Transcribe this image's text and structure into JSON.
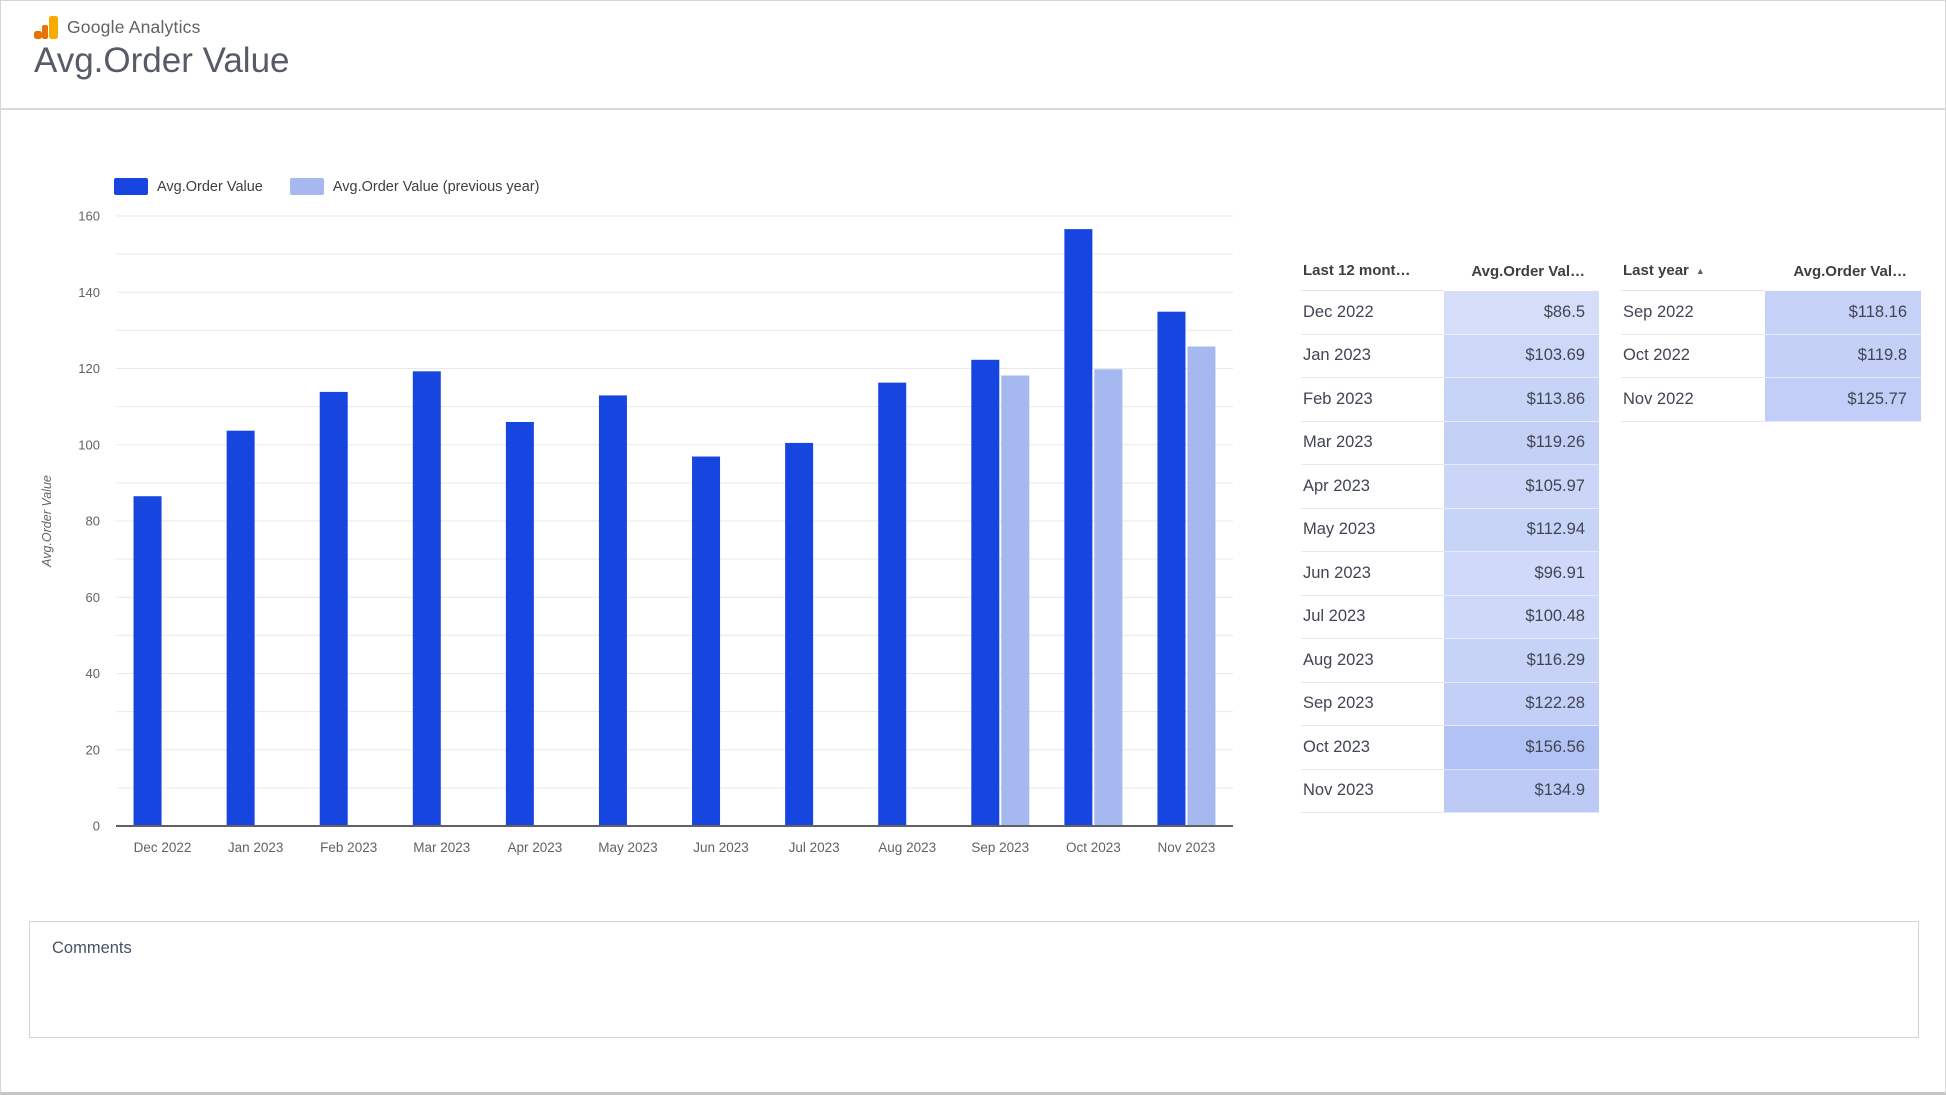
{
  "page": {
    "brand": "Google Analytics",
    "title": "Avg.Order Value"
  },
  "legend": {
    "items": [
      {
        "label": "Avg.Order Value",
        "color": "#1745e0"
      },
      {
        "label": "Avg.Order Value (previous year)",
        "color": "#a5b8ef"
      }
    ]
  },
  "chart_data": {
    "type": "bar",
    "title": "Avg.Order Value",
    "categories": [
      "Dec 2022",
      "Jan 2023",
      "Feb 2023",
      "Mar 2023",
      "Apr 2023",
      "May 2023",
      "Jun 2023",
      "Jul 2023",
      "Aug 2023",
      "Sep 2023",
      "Oct 2023",
      "Nov 2023"
    ],
    "series": [
      {
        "name": "Avg.Order Value",
        "color": "#1745e0",
        "values": [
          86.5,
          103.69,
          113.86,
          119.26,
          105.97,
          112.94,
          96.91,
          100.48,
          116.29,
          122.28,
          156.56,
          134.9
        ]
      },
      {
        "name": "Avg.Order Value (previous year)",
        "color": "#a5b8ef",
        "values": [
          null,
          null,
          null,
          null,
          null,
          null,
          null,
          null,
          null,
          118.16,
          119.8,
          125.77
        ]
      }
    ],
    "xlabel": "",
    "ylabel": "Avg.Order Value",
    "ylim": [
      0,
      160
    ],
    "ytick_step": 20,
    "grid_step": 10,
    "grid": true,
    "legend_position": "top-left"
  },
  "tables": [
    {
      "name": "last-12-months",
      "columns": [
        {
          "label": "Last 12 mont…",
          "sort": null
        },
        {
          "label": "Avg.Order Val…",
          "sort": null
        }
      ],
      "rows": [
        {
          "label": "Dec 2022",
          "value": 86.5,
          "display": "$86.5"
        },
        {
          "label": "Jan 2023",
          "value": 103.69,
          "display": "$103.69"
        },
        {
          "label": "Feb 2023",
          "value": 113.86,
          "display": "$113.86"
        },
        {
          "label": "Mar 2023",
          "value": 119.26,
          "display": "$119.26"
        },
        {
          "label": "Apr 2023",
          "value": 105.97,
          "display": "$105.97"
        },
        {
          "label": "May 2023",
          "value": 112.94,
          "display": "$112.94"
        },
        {
          "label": "Jun 2023",
          "value": 96.91,
          "display": "$96.91"
        },
        {
          "label": "Jul 2023",
          "value": 100.48,
          "display": "$100.48"
        },
        {
          "label": "Aug 2023",
          "value": 116.29,
          "display": "$116.29"
        },
        {
          "label": "Sep 2023",
          "value": 122.28,
          "display": "$122.28"
        },
        {
          "label": "Oct 2023",
          "value": 156.56,
          "display": "$156.56"
        },
        {
          "label": "Nov 2023",
          "value": 134.9,
          "display": "$134.9"
        }
      ]
    },
    {
      "name": "last-year",
      "columns": [
        {
          "label": "Last year",
          "sort": "asc"
        },
        {
          "label": "Avg.Order Val…",
          "sort": null
        }
      ],
      "rows": [
        {
          "label": "Sep 2022",
          "value": 118.16,
          "display": "$118.16"
        },
        {
          "label": "Oct 2022",
          "value": 119.8,
          "display": "$119.8"
        },
        {
          "label": "Nov 2022",
          "value": 125.77,
          "display": "$125.77"
        }
      ]
    }
  ],
  "heatmap": {
    "color": "#1745e0",
    "domain": [
      86.5,
      156.56
    ],
    "alpha_min": 0.18,
    "alpha_max": 0.33
  },
  "comments": {
    "label": "Comments"
  },
  "colors": {
    "primary": "#1745e0",
    "primary_light": "#a5b8ef",
    "axis_text": "#5f6368",
    "grid": "#e9e9e9",
    "axis_line": "#616161",
    "header_text": "#3c4043",
    "cell_text": "#414554",
    "title_text": "#565b66",
    "divider": "#dadada",
    "logo_amber": "#f9ab00",
    "logo_orange": "#e37400"
  }
}
